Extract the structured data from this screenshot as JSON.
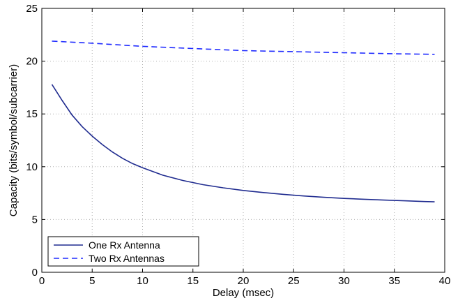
{
  "chart_data": {
    "type": "line",
    "title": "",
    "xlabel": "Delay (msec)",
    "ylabel": "Capacity (bits/symbol/subcarrier)",
    "xlim": [
      0,
      40
    ],
    "ylim": [
      0,
      25
    ],
    "xticks": [
      0,
      5,
      10,
      15,
      20,
      25,
      30,
      35,
      40
    ],
    "yticks": [
      0,
      5,
      10,
      15,
      20,
      25
    ],
    "grid": true,
    "legend_position": "bottom-left",
    "series": [
      {
        "name": "One Rx Antenna",
        "style": "solid",
        "color": "#1f2b8f",
        "x": [
          1,
          2,
          3,
          4,
          5,
          6,
          7,
          8,
          9,
          10,
          12,
          14,
          16,
          18,
          20,
          22,
          24,
          26,
          28,
          30,
          32,
          34,
          36,
          38,
          39
        ],
        "y": [
          17.8,
          16.3,
          14.9,
          13.8,
          12.9,
          12.1,
          11.4,
          10.8,
          10.3,
          9.9,
          9.2,
          8.7,
          8.3,
          8.0,
          7.75,
          7.55,
          7.38,
          7.23,
          7.1,
          7.0,
          6.92,
          6.84,
          6.77,
          6.7,
          6.67
        ]
      },
      {
        "name": "Two Rx Antennas",
        "style": "dashed",
        "color": "#1f2bff",
        "x": [
          1,
          5,
          10,
          15,
          20,
          25,
          30,
          35,
          39
        ],
        "y": [
          21.9,
          21.7,
          21.4,
          21.2,
          21.0,
          20.9,
          20.8,
          20.7,
          20.65
        ]
      }
    ]
  }
}
